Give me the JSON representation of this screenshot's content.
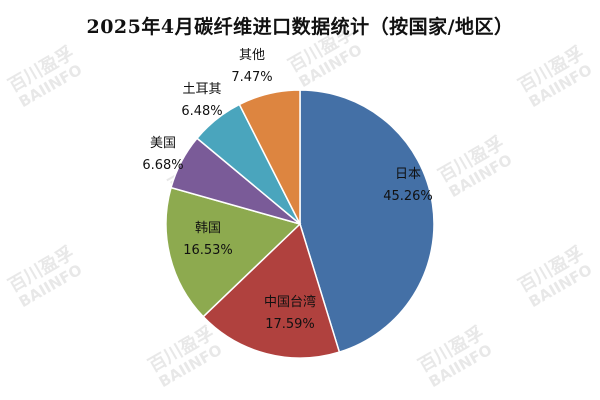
{
  "chart_data": {
    "type": "pie",
    "title": "2025年4月碳纤维进口数据统计（按国家/地区）",
    "categories": [
      "日本",
      "中国台湾",
      "韩国",
      "美国",
      "土耳其",
      "其他"
    ],
    "values": [
      45.26,
      17.59,
      16.53,
      6.68,
      6.48,
      7.47
    ],
    "value_labels": [
      "45.26%",
      "17.59%",
      "16.53%",
      "6.68%",
      "6.48%",
      "7.47%"
    ],
    "colors": [
      "#4470a6",
      "#b0413e",
      "#8daa4f",
      "#7a5b98",
      "#4aa5bd",
      "#dd8540"
    ],
    "start_angle": "top",
    "direction": "clockwise",
    "legend": "none"
  },
  "watermark": {
    "line1": "百川盈孚",
    "line2": "BAIINFO"
  }
}
